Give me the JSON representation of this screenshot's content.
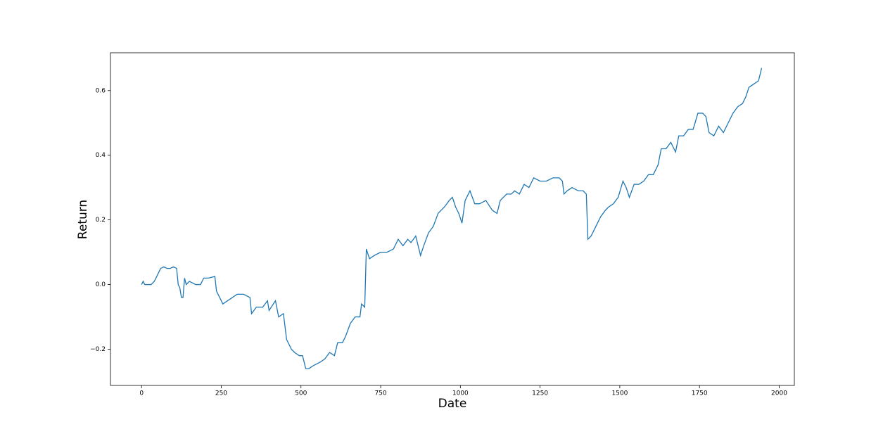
{
  "chart_data": {
    "type": "line",
    "xlabel": "Date",
    "ylabel": "Return",
    "x": [
      0,
      5,
      10,
      20,
      30,
      40,
      50,
      60,
      70,
      80,
      90,
      100,
      110,
      115,
      120,
      125,
      130,
      135,
      140,
      150,
      170,
      185,
      195,
      210,
      230,
      235,
      245,
      255,
      270,
      285,
      300,
      320,
      340,
      345,
      360,
      380,
      395,
      400,
      420,
      430,
      445,
      455,
      470,
      480,
      495,
      505,
      515,
      525,
      540,
      560,
      575,
      590,
      605,
      615,
      630,
      640,
      655,
      670,
      685,
      690,
      700,
      705,
      715,
      730,
      750,
      770,
      790,
      805,
      820,
      835,
      845,
      860,
      875,
      885,
      900,
      915,
      930,
      950,
      965,
      975,
      985,
      995,
      1005,
      1015,
      1030,
      1045,
      1060,
      1080,
      1100,
      1115,
      1125,
      1145,
      1160,
      1170,
      1185,
      1200,
      1215,
      1230,
      1250,
      1270,
      1290,
      1310,
      1320,
      1325,
      1335,
      1350,
      1370,
      1385,
      1395,
      1400,
      1410,
      1425,
      1440,
      1455,
      1465,
      1480,
      1495,
      1510,
      1520,
      1530,
      1545,
      1560,
      1575,
      1590,
      1605,
      1620,
      1630,
      1645,
      1660,
      1675,
      1685,
      1700,
      1715,
      1730,
      1745,
      1760,
      1770,
      1780,
      1795,
      1810,
      1825,
      1840,
      1855,
      1870,
      1885,
      1895,
      1905,
      1920,
      1935,
      1945
    ],
    "series": [
      {
        "name": "Return",
        "color": "#1f77b4",
        "values": [
          0.0,
          0.01,
          0.0,
          0.0,
          0.0,
          0.01,
          0.03,
          0.05,
          0.055,
          0.05,
          0.05,
          0.055,
          0.05,
          0.0,
          -0.01,
          -0.04,
          -0.04,
          0.02,
          0.0,
          0.01,
          0.0,
          0.0,
          0.02,
          0.02,
          0.025,
          -0.02,
          -0.04,
          -0.06,
          -0.05,
          -0.04,
          -0.03,
          -0.03,
          -0.04,
          -0.09,
          -0.07,
          -0.07,
          -0.05,
          -0.08,
          -0.05,
          -0.1,
          -0.09,
          -0.17,
          -0.2,
          -0.21,
          -0.22,
          -0.22,
          -0.26,
          -0.26,
          -0.25,
          -0.24,
          -0.23,
          -0.21,
          -0.22,
          -0.18,
          -0.18,
          -0.16,
          -0.12,
          -0.1,
          -0.1,
          -0.06,
          -0.07,
          0.11,
          0.08,
          0.09,
          0.1,
          0.1,
          0.11,
          0.14,
          0.12,
          0.14,
          0.13,
          0.15,
          0.09,
          0.12,
          0.16,
          0.18,
          0.22,
          0.24,
          0.26,
          0.27,
          0.24,
          0.22,
          0.19,
          0.26,
          0.29,
          0.25,
          0.25,
          0.26,
          0.23,
          0.22,
          0.26,
          0.28,
          0.28,
          0.29,
          0.28,
          0.31,
          0.3,
          0.33,
          0.32,
          0.32,
          0.33,
          0.33,
          0.32,
          0.28,
          0.29,
          0.3,
          0.29,
          0.29,
          0.28,
          0.14,
          0.15,
          0.18,
          0.21,
          0.23,
          0.24,
          0.25,
          0.27,
          0.32,
          0.3,
          0.27,
          0.31,
          0.31,
          0.32,
          0.34,
          0.34,
          0.37,
          0.42,
          0.42,
          0.44,
          0.41,
          0.46,
          0.46,
          0.48,
          0.48,
          0.53,
          0.53,
          0.52,
          0.47,
          0.46,
          0.49,
          0.47,
          0.5,
          0.53,
          0.55,
          0.56,
          0.58,
          0.61,
          0.62,
          0.63,
          0.67
        ]
      }
    ],
    "xlim": [
      -97.5,
      2047.5
    ],
    "ylim": [
      -0.312,
      0.717
    ],
    "xticks": [
      0,
      250,
      500,
      750,
      1000,
      1250,
      1500,
      1750,
      2000
    ],
    "yticks": [
      {
        "value": -0.2,
        "label": "−0.2"
      },
      {
        "value": 0,
        "label": "0.0"
      },
      0.2,
      0.4,
      0.6
    ],
    "grid": false
  }
}
